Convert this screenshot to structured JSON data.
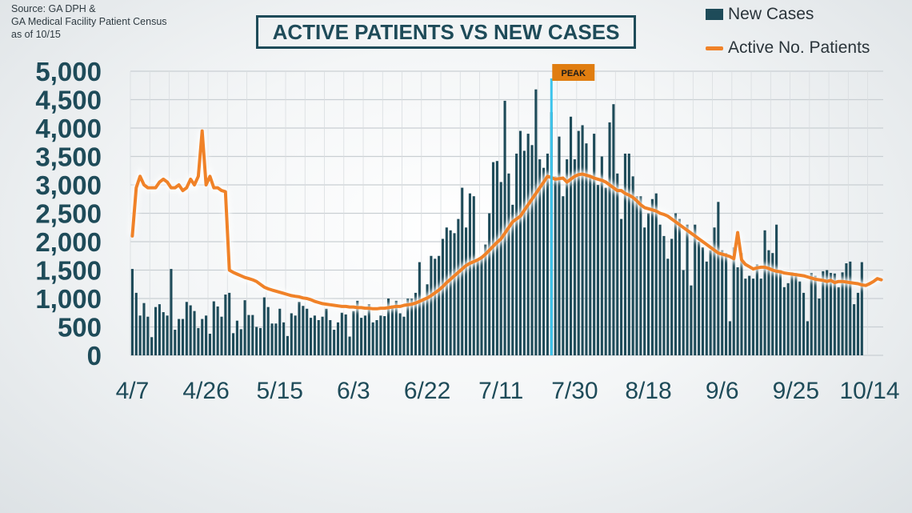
{
  "source": {
    "lines": [
      "Source: GA DPH &",
      "GA Medical Facility Patient Census",
      "as of 10/15"
    ]
  },
  "title": "ACTIVE PATIENTS VS NEW CASES",
  "legend": {
    "bars_label": "New Cases",
    "line_label": "Active No. Patients"
  },
  "colors": {
    "bars": "#1e4b59",
    "line": "#f08228",
    "peak_line": "#3cc4ec",
    "peak_label_bg": "#e07d10",
    "axis_text": "#1e4b59"
  },
  "chart_data": {
    "type": "bar",
    "title": "ACTIVE PATIENTS VS NEW CASES",
    "ylim": [
      0,
      5000
    ],
    "yticks": [
      0,
      500,
      1000,
      1500,
      2000,
      2500,
      3000,
      3500,
      4000,
      4500,
      5000
    ],
    "ytick_labels": [
      "0",
      "500",
      "1,000",
      "1,500",
      "2,000",
      "2,500",
      "3,000",
      "3,500",
      "4,000",
      "4,500",
      "5,000"
    ],
    "grid": true,
    "legend_position": "top-right",
    "x_labels": [
      {
        "label": "4/7",
        "day": 0
      },
      {
        "label": "4/26",
        "day": 19
      },
      {
        "label": "5/15",
        "day": 38
      },
      {
        "label": "6/3",
        "day": 57
      },
      {
        "label": "6/22",
        "day": 76
      },
      {
        "label": "7/11",
        "day": 95
      },
      {
        "label": "7/30",
        "day": 114
      },
      {
        "label": "8/18",
        "day": 133
      },
      {
        "label": "9/6",
        "day": 152
      },
      {
        "label": "9/25",
        "day": 171
      },
      {
        "label": "10/14",
        "day": 190
      }
    ],
    "peak": {
      "label": "PEAK",
      "day": 108
    },
    "series": [
      {
        "name": "New Cases",
        "type": "bar",
        "start": "4/7",
        "values": [
          1520,
          1100,
          700,
          920,
          680,
          320,
          850,
          900,
          760,
          700,
          1520,
          450,
          640,
          640,
          940,
          880,
          780,
          480,
          640,
          700,
          380,
          950,
          860,
          680,
          1070,
          1100,
          390,
          610,
          460,
          970,
          710,
          710,
          500,
          480,
          1020,
          850,
          560,
          560,
          820,
          580,
          340,
          740,
          700,
          940,
          870,
          820,
          660,
          700,
          620,
          680,
          820,
          620,
          450,
          580,
          750,
          720,
          330,
          780,
          960,
          660,
          700,
          900,
          580,
          620,
          700,
          690,
          1000,
          880,
          960,
          740,
          680,
          1000,
          1000,
          1100,
          1640,
          1000,
          1250,
          1750,
          1700,
          1750,
          2050,
          2250,
          2200,
          2150,
          2400,
          2950,
          2250,
          2850,
          2800,
          1700,
          1750,
          1950,
          2500,
          3400,
          3420,
          3050,
          4480,
          3200,
          2650,
          3550,
          3950,
          3600,
          3900,
          3700,
          4680,
          3450,
          3300,
          3550,
          4280,
          3150,
          3850,
          2800,
          3450,
          4200,
          3450,
          3950,
          4050,
          3730,
          3150,
          3900,
          3000,
          3500,
          2950,
          4100,
          4420,
          3200,
          2400,
          3550,
          3550,
          3150,
          2800,
          2800,
          2250,
          2500,
          2750,
          2850,
          2300,
          2100,
          1700,
          2050,
          2500,
          2400,
          1500,
          2300,
          1230,
          2300,
          2000,
          1900,
          1650,
          1850,
          2250,
          2700,
          1850,
          1800,
          600,
          1900,
          1550,
          1800,
          1350,
          1400,
          1350,
          1600,
          1350,
          2200,
          1850,
          1800,
          2300,
          1500,
          1200,
          1270,
          1460,
          1450,
          1300,
          1100,
          600,
          1450,
          1400,
          1000,
          1480,
          1500,
          1450,
          1440,
          1200,
          1460,
          1620,
          1650,
          900,
          1100,
          1640
        ]
      },
      {
        "name": "Active No. Patients",
        "type": "line",
        "start": "4/7",
        "values": [
          2100,
          2950,
          3150,
          3000,
          2950,
          2950,
          2950,
          3050,
          3100,
          3050,
          2950,
          2950,
          3000,
          2900,
          2950,
          3100,
          3000,
          3150,
          3950,
          3000,
          3150,
          2950,
          2950,
          2900,
          2880,
          1500,
          1460,
          1430,
          1400,
          1370,
          1350,
          1330,
          1300,
          1250,
          1200,
          1170,
          1150,
          1130,
          1110,
          1090,
          1070,
          1050,
          1040,
          1030,
          1010,
          1000,
          980,
          950,
          930,
          910,
          900,
          890,
          880,
          870,
          860,
          860,
          850,
          850,
          840,
          840,
          830,
          830,
          820,
          820,
          830,
          830,
          840,
          850,
          860,
          860,
          880,
          890,
          900,
          920,
          950,
          980,
          1010,
          1050,
          1100,
          1150,
          1210,
          1280,
          1340,
          1400,
          1460,
          1520,
          1580,
          1620,
          1650,
          1680,
          1720,
          1780,
          1850,
          1920,
          1990,
          2050,
          2150,
          2250,
          2350,
          2400,
          2450,
          2550,
          2650,
          2750,
          2850,
          2950,
          3050,
          3150,
          3130,
          3100,
          3110,
          3120,
          3050,
          3100,
          3150,
          3180,
          3190,
          3170,
          3150,
          3120,
          3100,
          3080,
          3050,
          3000,
          2950,
          2900,
          2900,
          2850,
          2820,
          2780,
          2720,
          2650,
          2600,
          2580,
          2560,
          2540,
          2500,
          2480,
          2450,
          2400,
          2350,
          2300,
          2250,
          2200,
          2150,
          2100,
          2050,
          2000,
          1950,
          1900,
          1850,
          1800,
          1780,
          1760,
          1740,
          1700,
          2160,
          1680,
          1600,
          1560,
          1520,
          1540,
          1550,
          1550,
          1530,
          1500,
          1480,
          1470,
          1450,
          1440,
          1430,
          1420,
          1410,
          1400,
          1380,
          1360,
          1340,
          1330,
          1320,
          1300,
          1320,
          1280,
          1300,
          1300,
          1290,
          1280,
          1270,
          1260,
          1240,
          1230,
          1260,
          1300,
          1350,
          1330
        ]
      }
    ]
  }
}
